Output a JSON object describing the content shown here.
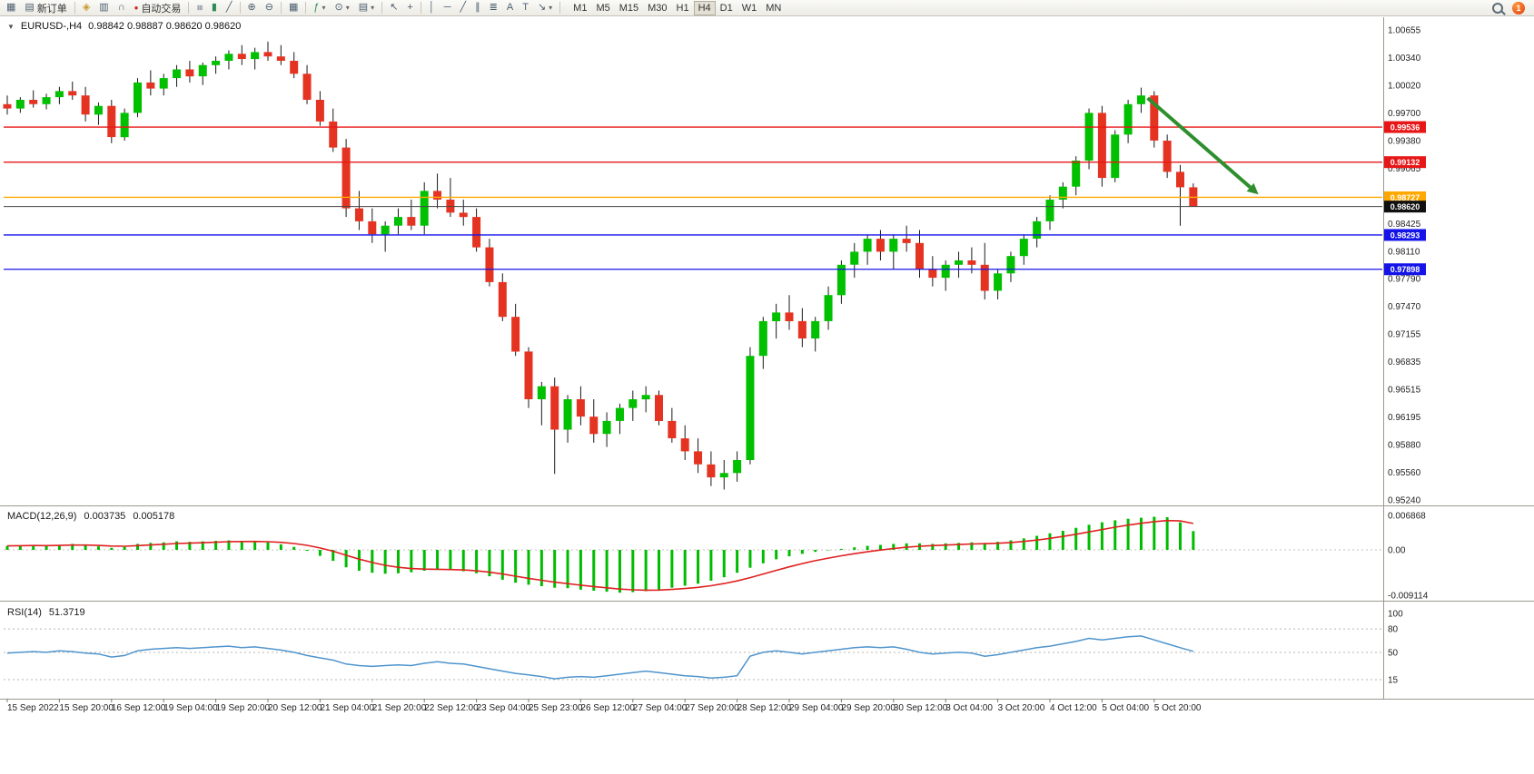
{
  "toolbar": {
    "new_order_label": "新订单",
    "auto_trading_label": "自动交易",
    "timeframes": [
      "M1",
      "M5",
      "M15",
      "M30",
      "H1",
      "H4",
      "D1",
      "W1",
      "MN"
    ],
    "active_timeframe": "H4",
    "notification_count": "1"
  },
  "icons": {
    "caret_down": "▼",
    "chart_window": "▦",
    "new_order": "▤",
    "guide": "◈",
    "chart_shift": "▥",
    "quotes": "∩",
    "autotrade": "●",
    "bars": "≡",
    "candles": "▮",
    "line_chart": "╱",
    "zoom_in": "⊕",
    "zoom_out": "⊖",
    "tile": "▦",
    "indicators": "ƒ",
    "clock": "⊙",
    "template": "▤",
    "cursor": "↖",
    "crosshair": "+",
    "vline": "│",
    "hline": "─",
    "trendline": "╱",
    "channel": "∥",
    "fibo": "≣",
    "text": "A",
    "label": "T",
    "arrows": "↘",
    "caret_small": "▾"
  },
  "chart": {
    "header": {
      "symbol": "EURUSD-,H4",
      "ohlc": "0.98842 0.98887 0.98620 0.98620"
    },
    "price_axis_labels": [
      "1.00655",
      "1.00340",
      "1.00020",
      "0.99700",
      "0.99380",
      "0.99065",
      "0.98745",
      "0.98425",
      "0.98110",
      "0.97790",
      "0.97470",
      "0.97155",
      "0.96835",
      "0.96515",
      "0.96195",
      "0.95880",
      "0.95560",
      "0.95240"
    ],
    "time_axis_labels": [
      "15 Sep 2022",
      "15 Sep 20:00",
      "16 Sep 12:00",
      "19 Sep 04:00",
      "19 Sep 20:00",
      "20 Sep 12:00",
      "21 Sep 04:00",
      "21 Sep 20:00",
      "22 Sep 12:00",
      "23 Sep 04:00",
      "25 Sep 23:00",
      "26 Sep 12:00",
      "27 Sep 04:00",
      "27 Sep 20:00",
      "28 Sep 12:00",
      "29 Sep 04:00",
      "29 Sep 20:00",
      "30 Sep 12:00",
      "3 Oct 04:00",
      "3 Oct 20:00",
      "4 Oct 12:00",
      "5 Oct 04:00",
      "5 Oct 20:00"
    ],
    "hlines": [
      {
        "price": 0.99536,
        "label": "0.99536",
        "color": "#e81717"
      },
      {
        "price": 0.99132,
        "label": "0.99132",
        "color": "#e81717"
      },
      {
        "price": 0.98727,
        "label": "0.98727",
        "color": "#ffa800"
      },
      {
        "price": 0.98293,
        "label": "0.98293",
        "color": "#1414e8"
      },
      {
        "price": 0.97898,
        "label": "0.97898",
        "color": "#1414e8"
      }
    ],
    "current_price": {
      "price": 0.9862,
      "label": "0.98620",
      "color": "#101010"
    },
    "arrow": {
      "from_index": 87.5,
      "from_price": 0.9987,
      "to_index": 96,
      "to_price": 0.9876,
      "color": "#2e8f2e"
    },
    "up_color": "#00c000",
    "down_color": "#e53322",
    "candles": [
      [
        0.998,
        0.999,
        0.9968,
        0.9975
      ],
      [
        0.9975,
        0.9988,
        0.997,
        0.9985
      ],
      [
        0.9985,
        0.9996,
        0.9976,
        0.998
      ],
      [
        0.998,
        0.9992,
        0.9974,
        0.9988
      ],
      [
        0.9988,
        1.0,
        0.998,
        0.9995
      ],
      [
        0.9995,
        1.0006,
        0.9985,
        0.999
      ],
      [
        0.999,
        1.0,
        0.996,
        0.9968
      ],
      [
        0.9968,
        0.9982,
        0.9956,
        0.9978
      ],
      [
        0.9978,
        0.9985,
        0.9935,
        0.9942
      ],
      [
        0.9942,
        0.9975,
        0.9938,
        0.997
      ],
      [
        0.997,
        1.001,
        0.9965,
        1.0005
      ],
      [
        1.0005,
        1.0019,
        0.999,
        0.9998
      ],
      [
        0.9998,
        1.0015,
        0.999,
        1.001
      ],
      [
        1.001,
        1.0025,
        1.0,
        1.002
      ],
      [
        1.002,
        1.003,
        1.0005,
        1.0012
      ],
      [
        1.0012,
        1.0028,
        1.0002,
        1.0025
      ],
      [
        1.0025,
        1.0035,
        1.0015,
        1.003
      ],
      [
        1.003,
        1.0042,
        1.002,
        1.0038
      ],
      [
        1.0038,
        1.0048,
        1.0025,
        1.0032
      ],
      [
        1.0032,
        1.0045,
        1.002,
        1.004
      ],
      [
        1.004,
        1.0052,
        1.003,
        1.0035
      ],
      [
        1.0035,
        1.0048,
        1.0025,
        1.003
      ],
      [
        1.003,
        1.004,
        1.001,
        1.0015
      ],
      [
        1.0015,
        1.0025,
        0.998,
        0.9985
      ],
      [
        0.9985,
        0.9995,
        0.9955,
        0.996
      ],
      [
        0.996,
        0.9975,
        0.9925,
        0.993
      ],
      [
        0.993,
        0.994,
        0.985,
        0.986
      ],
      [
        0.986,
        0.988,
        0.9835,
        0.9845
      ],
      [
        0.9845,
        0.986,
        0.982,
        0.983
      ],
      [
        0.983,
        0.9845,
        0.981,
        0.984
      ],
      [
        0.984,
        0.986,
        0.983,
        0.985
      ],
      [
        0.985,
        0.987,
        0.9835,
        0.984
      ],
      [
        0.984,
        0.989,
        0.983,
        0.988
      ],
      [
        0.988,
        0.99,
        0.986,
        0.987
      ],
      [
        0.987,
        0.9895,
        0.985,
        0.9855
      ],
      [
        0.9855,
        0.987,
        0.984,
        0.985
      ],
      [
        0.985,
        0.986,
        0.981,
        0.9815
      ],
      [
        0.9815,
        0.9825,
        0.977,
        0.9775
      ],
      [
        0.9775,
        0.9785,
        0.973,
        0.9735
      ],
      [
        0.9735,
        0.975,
        0.969,
        0.9695
      ],
      [
        0.9695,
        0.97,
        0.963,
        0.964
      ],
      [
        0.964,
        0.966,
        0.961,
        0.9655
      ],
      [
        0.9655,
        0.9665,
        0.9554,
        0.9605
      ],
      [
        0.9605,
        0.9645,
        0.959,
        0.964
      ],
      [
        0.964,
        0.9655,
        0.961,
        0.962
      ],
      [
        0.962,
        0.964,
        0.959,
        0.96
      ],
      [
        0.96,
        0.9625,
        0.9585,
        0.9615
      ],
      [
        0.9615,
        0.9635,
        0.96,
        0.963
      ],
      [
        0.963,
        0.965,
        0.9615,
        0.964
      ],
      [
        0.964,
        0.9655,
        0.9625,
        0.9645
      ],
      [
        0.9645,
        0.965,
        0.961,
        0.9615
      ],
      [
        0.9615,
        0.963,
        0.959,
        0.9595
      ],
      [
        0.9595,
        0.961,
        0.957,
        0.958
      ],
      [
        0.958,
        0.9595,
        0.9555,
        0.9565
      ],
      [
        0.9565,
        0.958,
        0.954,
        0.955
      ],
      [
        0.955,
        0.957,
        0.9536,
        0.9555
      ],
      [
        0.9555,
        0.958,
        0.9545,
        0.957
      ],
      [
        0.957,
        0.97,
        0.9565,
        0.969
      ],
      [
        0.969,
        0.9735,
        0.9675,
        0.973
      ],
      [
        0.973,
        0.975,
        0.971,
        0.974
      ],
      [
        0.974,
        0.976,
        0.972,
        0.973
      ],
      [
        0.973,
        0.9745,
        0.97,
        0.971
      ],
      [
        0.971,
        0.9735,
        0.9695,
        0.973
      ],
      [
        0.973,
        0.977,
        0.972,
        0.976
      ],
      [
        0.976,
        0.98,
        0.975,
        0.9795
      ],
      [
        0.9795,
        0.982,
        0.978,
        0.981
      ],
      [
        0.981,
        0.983,
        0.9795,
        0.9825
      ],
      [
        0.9825,
        0.9835,
        0.98,
        0.981
      ],
      [
        0.981,
        0.983,
        0.979,
        0.9825
      ],
      [
        0.9825,
        0.984,
        0.981,
        0.982
      ],
      [
        0.982,
        0.9835,
        0.978,
        0.979
      ],
      [
        0.979,
        0.9805,
        0.977,
        0.978
      ],
      [
        0.978,
        0.98,
        0.9765,
        0.9795
      ],
      [
        0.9795,
        0.981,
        0.978,
        0.98
      ],
      [
        0.98,
        0.9815,
        0.9785,
        0.9795
      ],
      [
        0.9795,
        0.982,
        0.9755,
        0.9765
      ],
      [
        0.9765,
        0.979,
        0.9755,
        0.9785
      ],
      [
        0.9785,
        0.981,
        0.9775,
        0.9805
      ],
      [
        0.9805,
        0.983,
        0.9795,
        0.9825
      ],
      [
        0.9825,
        0.985,
        0.9815,
        0.9845
      ],
      [
        0.9845,
        0.9875,
        0.9835,
        0.987
      ],
      [
        0.987,
        0.989,
        0.986,
        0.9885
      ],
      [
        0.9885,
        0.992,
        0.9875,
        0.9915
      ],
      [
        0.9915,
        0.9975,
        0.9905,
        0.997
      ],
      [
        0.997,
        0.9978,
        0.9885,
        0.9895
      ],
      [
        0.9895,
        0.995,
        0.989,
        0.9945
      ],
      [
        0.9945,
        0.9985,
        0.9935,
        0.998
      ],
      [
        0.998,
        0.9999,
        0.997,
        0.999
      ],
      [
        0.999,
        0.9995,
        0.993,
        0.9938
      ],
      [
        0.9938,
        0.9945,
        0.9895,
        0.9902
      ],
      [
        0.9902,
        0.991,
        0.984,
        0.98842
      ],
      [
        0.98842,
        0.98887,
        0.9862,
        0.9862
      ]
    ]
  },
  "macd": {
    "name": "MACD(12,26,9)",
    "value_main": "0.003735",
    "value_signal": "0.005178",
    "axis_labels": [
      "0.006868",
      "0.00",
      "-0.009114"
    ],
    "histogram_color": "#00bc00",
    "signal_color": "#e02020",
    "histogram": [
      0.0008,
      0.0009,
      0.001,
      0.0008,
      0.001,
      0.0012,
      0.0009,
      0.0007,
      0.0004,
      0.0006,
      0.0012,
      0.0014,
      0.0015,
      0.0017,
      0.0016,
      0.0017,
      0.0018,
      0.0019,
      0.0018,
      0.0017,
      0.0015,
      0.0011,
      0.0006,
      -0.0002,
      -0.0012,
      -0.0022,
      -0.0035,
      -0.0042,
      -0.0046,
      -0.0048,
      -0.0047,
      -0.0045,
      -0.0042,
      -0.004,
      -0.0041,
      -0.0043,
      -0.0047,
      -0.0053,
      -0.006,
      -0.0066,
      -0.007,
      -0.0073,
      -0.0076,
      -0.0077,
      -0.008,
      -0.0082,
      -0.0084,
      -0.0086,
      -0.0085,
      -0.0083,
      -0.008,
      -0.0076,
      -0.0072,
      -0.0068,
      -0.0062,
      -0.0055,
      -0.0046,
      -0.0036,
      -0.0027,
      -0.0019,
      -0.0013,
      -0.0008,
      -0.0004,
      -0.0001,
      0.0002,
      0.0005,
      0.0008,
      0.001,
      0.0012,
      0.0013,
      0.0013,
      0.0012,
      0.0013,
      0.0014,
      0.0015,
      0.0014,
      0.0016,
      0.0019,
      0.0023,
      0.0028,
      0.0033,
      0.0038,
      0.0044,
      0.005,
      0.0055,
      0.0059,
      0.0062,
      0.0064,
      0.0066,
      0.0065,
      0.0055,
      0.003735
    ]
  },
  "rsi": {
    "name": "RSI(14)",
    "value": "51.3719",
    "axis_labels": [
      "100",
      "80",
      "50",
      "15"
    ],
    "levels": [
      80,
      50,
      15
    ],
    "line_color": "#4f94cd",
    "values": [
      49,
      50,
      51,
      50,
      52,
      51,
      49,
      48,
      44,
      46,
      52,
      54,
      55,
      56,
      55,
      56,
      57,
      58,
      56,
      57,
      55,
      53,
      50,
      46,
      43,
      40,
      35,
      33,
      32,
      33,
      34,
      33,
      36,
      38,
      36,
      35,
      32,
      29,
      26,
      23,
      21,
      19,
      16,
      18,
      19,
      18,
      20,
      22,
      24,
      26,
      24,
      22,
      20,
      19,
      17,
      18,
      20,
      45,
      50,
      52,
      50,
      48,
      50,
      52,
      54,
      56,
      57,
      56,
      57,
      54,
      50,
      48,
      49,
      50,
      49,
      45,
      47,
      50,
      53,
      56,
      58,
      61,
      64,
      68,
      66,
      68,
      70,
      71,
      66,
      61,
      56,
      51.37
    ]
  }
}
